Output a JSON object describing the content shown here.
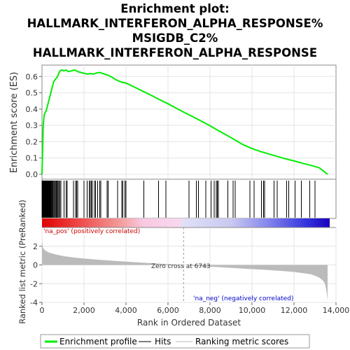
{
  "chart_data": {
    "type": "line",
    "title_lines": [
      "Enrichment plot:",
      "HALLMARK_INTERFERON_ALPHA_RESPONSE%",
      "MSIGDB_C2%",
      "HALLMARK_INTERFERON_ALPHA_RESPONSE"
    ],
    "es_panel": {
      "ylabel": "Enrichment score (ES)",
      "ylim": [
        -0.03,
        0.67
      ],
      "yticks": [
        "0.0",
        "0.1",
        "0.2",
        "0.3",
        "0.4",
        "0.5",
        "0.6"
      ],
      "ytick_values": [
        0.0,
        0.1,
        0.2,
        0.3,
        0.4,
        0.5,
        0.6
      ],
      "grid": true,
      "line_color": "#00ee00",
      "series": [
        {
          "x": [
            0,
            30,
            60,
            100,
            150,
            200,
            260,
            320,
            380,
            440,
            500,
            560,
            620,
            680,
            740,
            800,
            860,
            950,
            1050,
            1150,
            1250,
            1400,
            1550,
            1700,
            1850,
            2000,
            2150,
            2300,
            2450,
            2600,
            2750,
            2900,
            3050,
            3200,
            3400,
            3600,
            3800,
            4000,
            4400,
            4800,
            5200,
            5600,
            6000,
            6400,
            6800,
            7200,
            7600,
            8000,
            8400,
            8800,
            9200,
            9600,
            10000,
            10400,
            10800,
            11200,
            11600,
            12000,
            12400,
            12800,
            13200,
            13600
          ],
          "y": [
            0.0,
            0.15,
            0.3,
            0.36,
            0.38,
            0.39,
            0.42,
            0.45,
            0.48,
            0.51,
            0.54,
            0.57,
            0.58,
            0.59,
            0.6,
            0.62,
            0.635,
            0.64,
            0.635,
            0.64,
            0.63,
            0.635,
            0.64,
            0.63,
            0.625,
            0.62,
            0.615,
            0.618,
            0.615,
            0.622,
            0.625,
            0.618,
            0.612,
            0.605,
            0.59,
            0.575,
            0.565,
            0.56,
            0.535,
            0.51,
            0.485,
            0.458,
            0.433,
            0.405,
            0.378,
            0.352,
            0.325,
            0.298,
            0.268,
            0.24,
            0.21,
            0.18,
            0.158,
            0.14,
            0.125,
            0.11,
            0.095,
            0.082,
            0.068,
            0.055,
            0.04,
            0.0
          ]
        }
      ]
    },
    "hits": [
      5,
      25,
      40,
      60,
      80,
      95,
      110,
      130,
      150,
      170,
      190,
      210,
      230,
      250,
      270,
      290,
      310,
      330,
      350,
      380,
      400,
      430,
      460,
      490,
      520,
      560,
      600,
      640,
      680,
      720,
      760,
      800,
      850,
      900,
      1050,
      1150,
      1200,
      1500,
      1600,
      1650,
      1700,
      2000,
      2150,
      2250,
      2300,
      2350,
      2400,
      2500,
      2550,
      2650,
      2750,
      2800,
      3100,
      3150,
      3600,
      3800,
      3850,
      3950,
      4000,
      4850,
      5550,
      5900,
      7000,
      7350,
      7450,
      7800,
      8050,
      8200,
      8300,
      8350,
      8400,
      8850,
      9100,
      9200,
      9900,
      10100,
      10450,
      10550,
      10600,
      11050,
      11200,
      11650,
      11750,
      12050,
      12350,
      12750,
      13000
    ],
    "ranking_panel": {
      "ylabel": "Ranked list metric (PreRanked)",
      "xlabel": "Rank in Ordered Dataset",
      "ylim": [
        -4,
        4
      ],
      "yticks": [
        "2",
        "0",
        "-2",
        "-4"
      ],
      "ytick_values": [
        2,
        0,
        -2,
        -4
      ],
      "xlim": [
        0,
        14000
      ],
      "xticks": [
        "0",
        "2,000",
        "4,000",
        "6,000",
        "8,000",
        "10,000",
        "12,000",
        "14,000"
      ],
      "xtick_values": [
        0,
        2000,
        4000,
        6000,
        8000,
        10000,
        12000,
        14000
      ],
      "n_genes": 13600,
      "metric_profile": {
        "x": [
          0,
          50,
          150,
          300,
          600,
          1000,
          1500,
          2000,
          3000,
          4000,
          5000,
          6000,
          6743,
          7500,
          8500,
          9500,
          10500,
          11500,
          12000,
          12500,
          12800,
          13000,
          13200,
          13350,
          13450,
          13520,
          13570,
          13600
        ],
        "y": [
          2.6,
          1.8,
          1.55,
          1.35,
          1.15,
          0.95,
          0.8,
          0.68,
          0.5,
          0.35,
          0.22,
          0.1,
          0.0,
          -0.12,
          -0.25,
          -0.38,
          -0.5,
          -0.65,
          -0.75,
          -0.9,
          -1.0,
          -1.15,
          -1.35,
          -1.6,
          -1.9,
          -2.4,
          -3.2,
          -3.8
        ]
      },
      "zero_cross_label": "Zero cross at 6743",
      "zero_cross": 6743,
      "pos_label": "'na_pos' (positively correlated)",
      "neg_label": "'na_neg' (negatively correlated)",
      "pos_color": "#dd0000",
      "neg_color": "#0000cc"
    },
    "legend": [
      {
        "label": "Enrichment profile",
        "color": "#00ee00"
      },
      {
        "label": "Hits",
        "color": "#000000"
      },
      {
        "label": "Ranking metric scores",
        "color": "#bbbbbb"
      }
    ]
  }
}
